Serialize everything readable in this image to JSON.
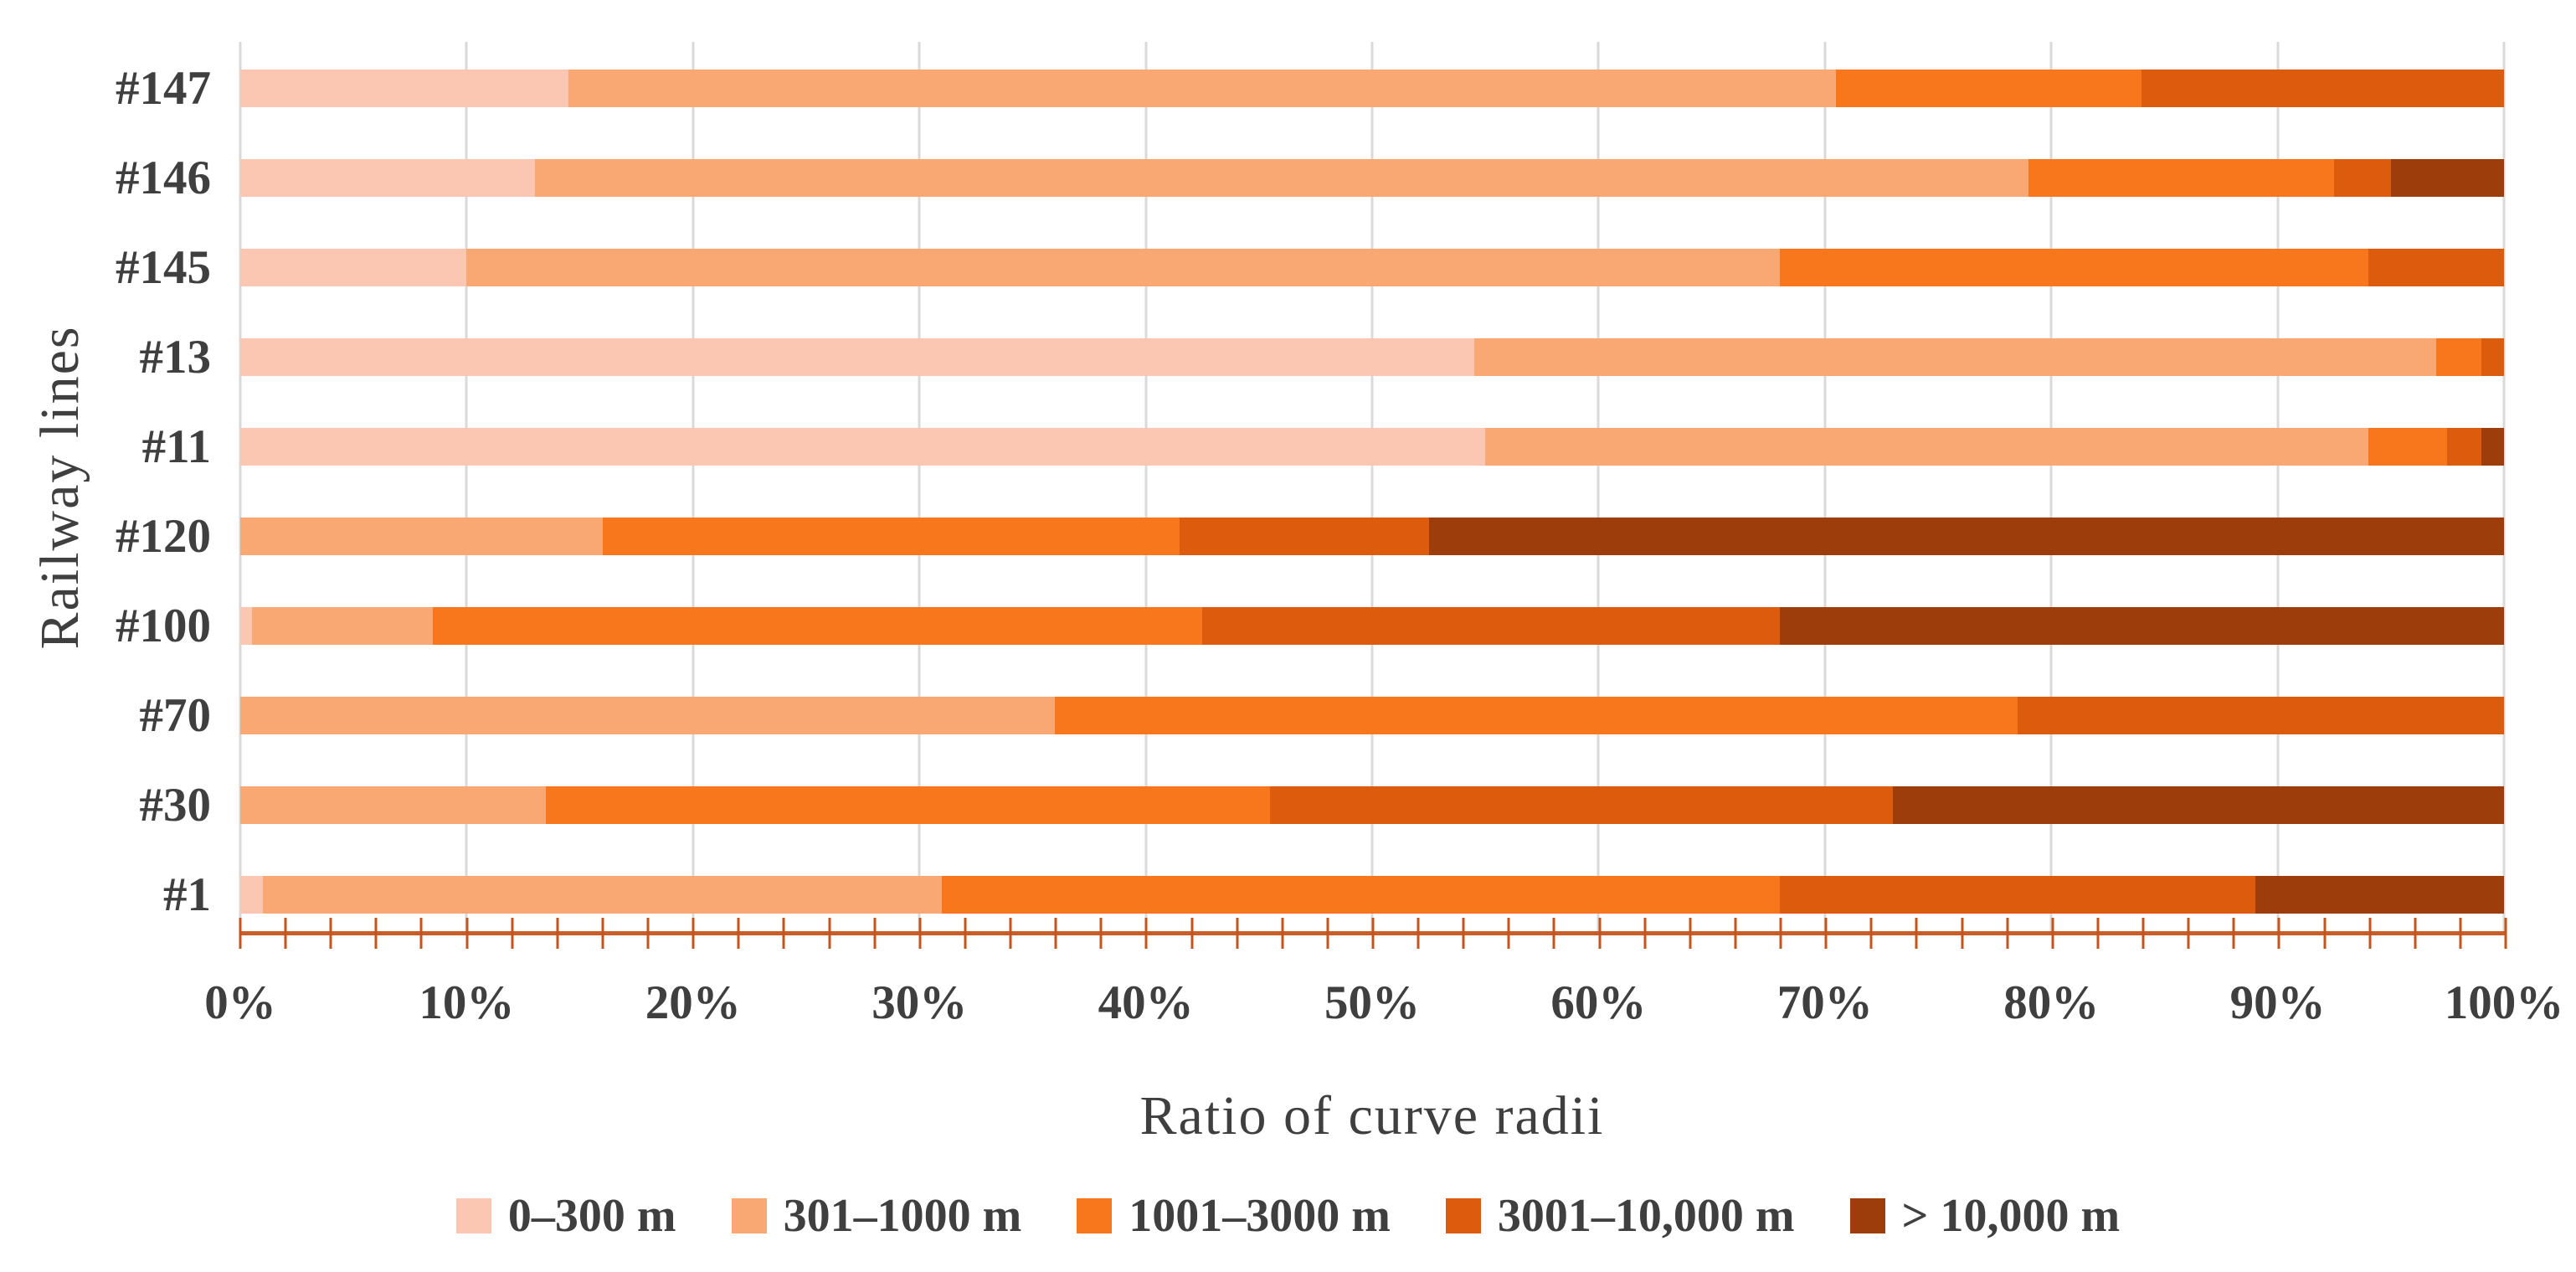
{
  "chart_data": {
    "type": "bar",
    "orientation": "horizontal-stacked",
    "title": "",
    "xlabel": "Ratio of curve radii",
    "ylabel": "Railway lines",
    "categories": [
      "#147",
      "#146",
      "#145",
      "#13",
      "#11",
      "#120",
      "#100",
      "#70",
      "#30",
      "#1"
    ],
    "series": [
      {
        "name": "0–300 m",
        "color": "#FCC7B2",
        "values": [
          14.5,
          13,
          10,
          54.5,
          55,
          0,
          0.5,
          0,
          0,
          1
        ]
      },
      {
        "name": "301–1000 m",
        "color": "#FAA873",
        "values": [
          56,
          66,
          58,
          42.5,
          39,
          16,
          8,
          36,
          13.5,
          30
        ]
      },
      {
        "name": "1001–3000 m",
        "color": "#F8771C",
        "values": [
          13.5,
          13.5,
          26,
          2,
          3.5,
          25.5,
          34,
          42.5,
          32,
          37
        ]
      },
      {
        "name": "3001–10,000 m",
        "color": "#DC5B0D",
        "values": [
          16,
          2.5,
          6,
          1,
          1.5,
          11,
          25.5,
          21.5,
          27.5,
          21
        ]
      },
      {
        "name": "> 10,000 m",
        "color": "#9C3D0B",
        "values": [
          0,
          5,
          0,
          0,
          1,
          47.5,
          32,
          0,
          27,
          11
        ]
      }
    ],
    "x_axis": {
      "tick_labels": [
        "0%",
        "10%",
        "20%",
        "30%",
        "40%",
        "50%",
        "60%",
        "70%",
        "80%",
        "90%",
        "100%"
      ],
      "range": [
        0,
        100
      ],
      "major_tick_step": 10,
      "minor_tick_step": 2
    },
    "grid": "vertical-major-only",
    "legend_position": "bottom",
    "gridline_color": "#D9D9D9",
    "axis_line_color": "#C95E28",
    "minor_tick_color": "#C4531C",
    "text_color": "#3F3F3F"
  }
}
